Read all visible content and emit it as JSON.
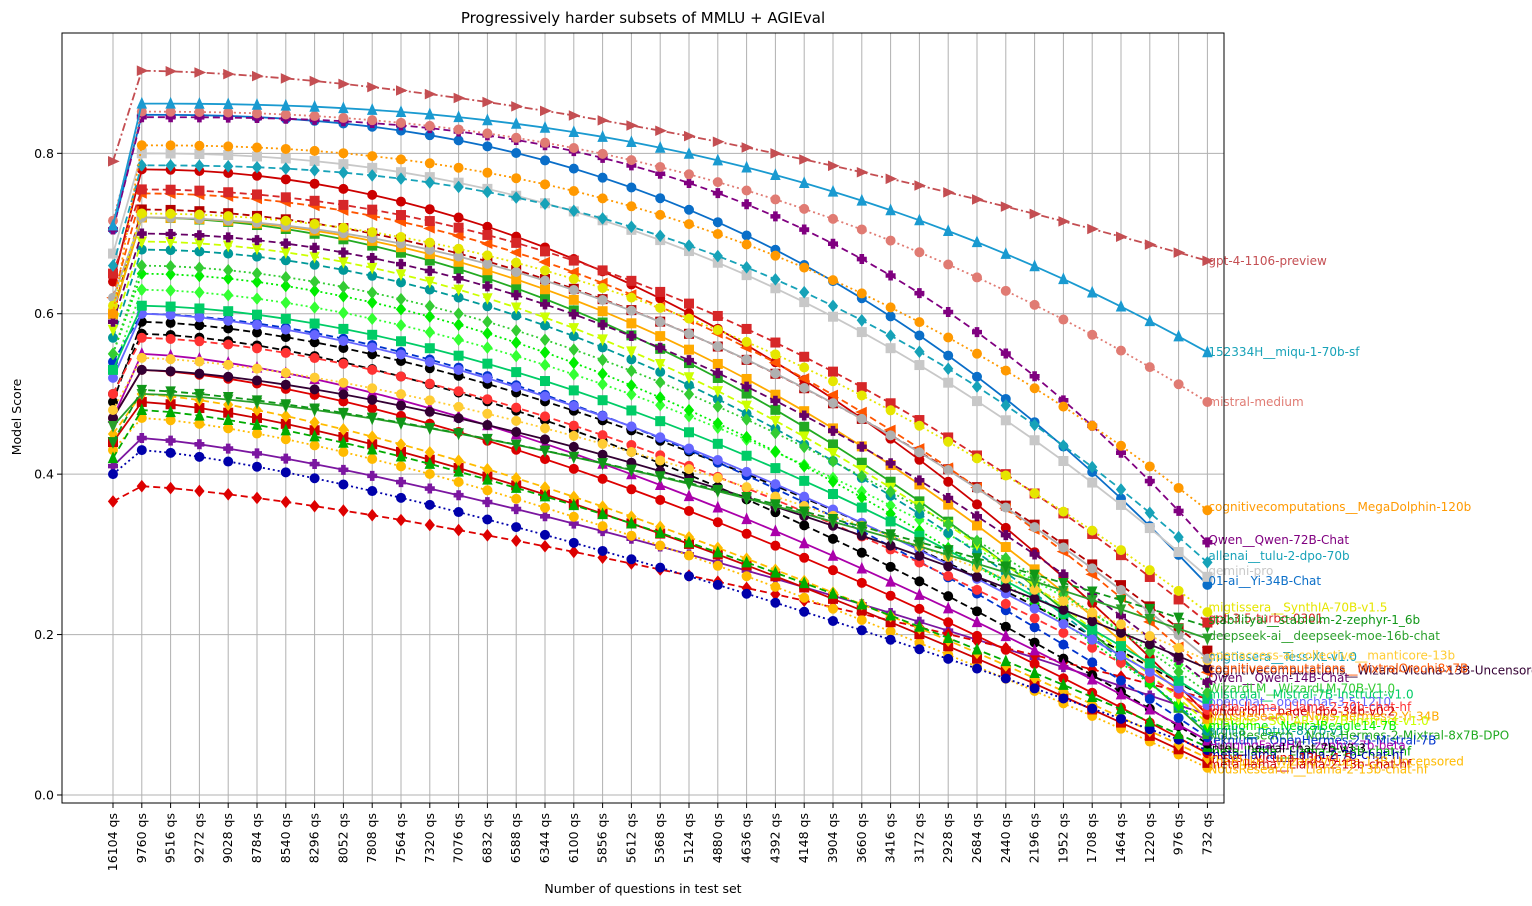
{
  "chart_data": {
    "type": "line",
    "title": "Progressively harder subsets of MMLU + AGIEval",
    "xlabel": "Number of questions in test set",
    "ylabel": "Model Score",
    "ylim": [
      -0.01,
      0.95
    ],
    "yticks": [
      "0.0",
      "0.2",
      "0.4",
      "0.6",
      "0.8"
    ],
    "grid": true,
    "legend": "none (series labelled at right end of lines)",
    "categories": [
      "16104 qs",
      "9760 qs",
      "9516 qs",
      "9272 qs",
      "9028 qs",
      "8784 qs",
      "8540 qs",
      "8296 qs",
      "8052 qs",
      "7808 qs",
      "7564 qs",
      "7320 qs",
      "7076 qs",
      "6832 qs",
      "6588 qs",
      "6344 qs",
      "6100 qs",
      "5856 qs",
      "5612 qs",
      "5368 qs",
      "5124 qs",
      "4880 qs",
      "4636 qs",
      "4392 qs",
      "4148 qs",
      "3904 qs",
      "3660 qs",
      "3416 qs",
      "3172 qs",
      "2928 qs",
      "2684 qs",
      "2440 qs",
      "2196 qs",
      "1952 qs",
      "1708 qs",
      "1464 qs",
      "1220 qs",
      "976 qs",
      "732 qs"
    ],
    "series": [
      {
        "name": "gpt-4-1106-preview",
        "start": 0.79,
        "peak": 0.903,
        "end": 0.666,
        "curve": 1.6,
        "color": "#c44e52",
        "dash": "8,3,2,3",
        "marker": "tri-right"
      },
      {
        "name": "152334H__miqu-1-70b-sf",
        "start": 0.71,
        "peak": 0.862,
        "end": 0.552,
        "curve": 2.4,
        "color": "#1a9ad0",
        "dash": "",
        "marker": "tri-up"
      },
      {
        "name": "mistral-medium",
        "start": 0.716,
        "peak": 0.852,
        "end": 0.49,
        "curve": 2.3,
        "color": "#e07b73",
        "dash": "2,3",
        "marker": "circle"
      },
      {
        "name": "cognitivecomputations__MegaDolphin-120b",
        "start": 0.6,
        "peak": 0.81,
        "end": 0.355,
        "curve": 2.3,
        "color": "#ff9900",
        "dash": "2,3",
        "marker": "circle"
      },
      {
        "name": "Qwen__Qwen-72B-Chat",
        "start": 0.705,
        "peak": 0.845,
        "end": 0.315,
        "curve": 2.8,
        "color": "#800080",
        "dash": "7,4",
        "marker": "plus"
      },
      {
        "name": "allenai__tulu-2-dpo-70b",
        "start": 0.66,
        "peak": 0.785,
        "end": 0.29,
        "curve": 2.4,
        "color": "#17a2b8",
        "dash": "7,4",
        "marker": "diamond"
      },
      {
        "name": "gemini-pro",
        "start": 0.675,
        "peak": 0.8,
        "end": 0.272,
        "curve": 2.2,
        "color": "#c8c8c8",
        "dash": "",
        "marker": "square"
      },
      {
        "name": "01-ai__Yi-34B-Chat",
        "start": 0.705,
        "peak": 0.848,
        "end": 0.262,
        "curve": 2.4,
        "color": "#0a6ec8",
        "dash": "",
        "marker": "circle"
      },
      {
        "name": "migtissera__SynthIA-70B-v1.5",
        "start": 0.61,
        "peak": 0.725,
        "end": 0.228,
        "curve": 2.0,
        "color": "#e6e600",
        "dash": "2,3",
        "marker": "circle"
      },
      {
        "name": "gpt-3.5-turbo-0301",
        "start": 0.65,
        "peak": 0.755,
        "end": 0.215,
        "curve": 2.0,
        "color": "#d62728",
        "dash": "7,4",
        "marker": "square"
      },
      {
        "name": "stabilityai__stablelm-2-zephyr-1_6b",
        "start": 0.44,
        "peak": 0.505,
        "end": 0.21,
        "curve": 1.4,
        "color": "#109618",
        "dash": "7,4",
        "marker": "tri-down"
      },
      {
        "name": "deepseek-ai__deepseek-moe-16b-chat",
        "start": 0.46,
        "peak": 0.5,
        "end": 0.195,
        "curve": 1.5,
        "color": "#2ca02c",
        "dash": "",
        "marker": "tri-down"
      },
      {
        "name": "migtissera__Tess-XL-v1.0",
        "start": 0.62,
        "peak": 0.72,
        "end": 0.17,
        "curve": 2.0,
        "color": "#b0b0b0",
        "dash": "",
        "marker": "circle"
      },
      {
        "name": "openaccess-ai-collective__manticore-13b",
        "start": 0.48,
        "peak": 0.545,
        "end": 0.168,
        "curve": 1.5,
        "color": "#ffcc33",
        "dash": "2,3",
        "marker": "circle"
      },
      {
        "name": "cognitivecomputations__Wizard-Vicuna-13B-Uncensored",
        "start": 0.47,
        "peak": 0.53,
        "end": 0.158,
        "curve": 1.5,
        "color": "#330033",
        "dash": "",
        "marker": "circle"
      },
      {
        "name": "cognitivecomputations__MixtralOrochi8x7B",
        "start": 0.62,
        "peak": 0.75,
        "end": 0.153,
        "curve": 2.0,
        "color": "#ff5500",
        "dash": "7,4",
        "marker": "tri-left"
      },
      {
        "name": "Qwen__Qwen-14B-Chat",
        "start": 0.59,
        "peak": 0.7,
        "end": 0.14,
        "curve": 1.9,
        "color": "#660066",
        "dash": "7,4",
        "marker": "plus"
      },
      {
        "name": "WizardLM__WizardLM-70B-V1.0",
        "start": 0.55,
        "peak": 0.66,
        "end": 0.128,
        "curve": 1.8,
        "color": "#33cc33",
        "dash": "2,3",
        "marker": "diamond"
      },
      {
        "name": "mistralai__Mistral-7B-Instruct-v1.0",
        "start": 0.53,
        "peak": 0.61,
        "end": 0.12,
        "curve": 1.7,
        "color": "#00cc66",
        "dash": "",
        "marker": "square"
      },
      {
        "name": "openchat__openchat-3.5-1210",
        "start": 0.52,
        "peak": 0.6,
        "end": 0.112,
        "curve": 1.6,
        "color": "#6666ff",
        "dash": "",
        "marker": "circle"
      },
      {
        "name": "meta-llama__Llama-2-70b-chat-hf",
        "start": 0.5,
        "peak": 0.57,
        "end": 0.106,
        "curve": 1.6,
        "color": "#ff3333",
        "dash": "7,4",
        "marker": "circle"
      },
      {
        "name": "jondurbin__bagel-dpo-34b-v0.2",
        "start": 0.64,
        "peak": 0.78,
        "end": 0.1,
        "curve": 2.0,
        "color": "#cc0000",
        "dash": "",
        "marker": "circle"
      },
      {
        "name": "NousResearch__Nous-Hermes-2-Yi-34B",
        "start": 0.6,
        "peak": 0.72,
        "end": 0.095,
        "curve": 2.0,
        "color": "#ffaa00",
        "dash": "",
        "marker": "square"
      },
      {
        "name": "upstage__SOLAR-10.7B-Instruct-v1.0",
        "start": 0.58,
        "peak": 0.69,
        "end": 0.09,
        "curve": 1.9,
        "color": "#ccff00",
        "dash": "7,4",
        "marker": "tri-down"
      },
      {
        "name": "mlabonne__NeuralBeagle14-7B",
        "start": 0.55,
        "peak": 0.65,
        "end": 0.085,
        "curve": 1.8,
        "color": "#00ee00",
        "dash": "2,3",
        "marker": "diamond"
      },
      {
        "name": "argilla__notux-8x7b-v1",
        "start": 0.57,
        "peak": 0.68,
        "end": 0.08,
        "curve": 1.9,
        "color": "#009999",
        "dash": "7,4",
        "marker": "circle"
      },
      {
        "name": "NousResearch__Nous-Hermes-2-Mixtral-8x7B-DPO",
        "start": 0.6,
        "peak": 0.72,
        "end": 0.076,
        "curve": 1.9,
        "color": "#22aa22",
        "dash": "",
        "marker": "square"
      },
      {
        "name": "teknium__OpenHermes-2.5-Mistral-7B",
        "start": 0.54,
        "peak": 0.6,
        "end": 0.072,
        "curve": 1.7,
        "color": "#0033cc",
        "dash": "7,4",
        "marker": "circle"
      },
      {
        "name": "HuggingFaceH4__zephyr-7b-beta",
        "start": 0.47,
        "peak": 0.55,
        "end": 0.068,
        "curve": 1.5,
        "color": "#aa00aa",
        "dash": "",
        "marker": "tri-up"
      },
      {
        "name": "Intel__neural-chat-7b-v3-3",
        "start": 0.5,
        "peak": 0.575,
        "end": 0.064,
        "curve": 1.6,
        "color": "#000000",
        "dash": "7,4",
        "marker": "circle"
      },
      {
        "name": "meta-llama__Llama-2-13b-chat-hf",
        "start": 0.42,
        "peak": 0.48,
        "end": 0.06,
        "curve": 1.4,
        "color": "#00aa00",
        "dash": "7,4",
        "marker": "tri-up"
      },
      {
        "name": "meta-llama__Llama-2-7b-chat-hf",
        "start": 0.4,
        "peak": 0.43,
        "end": 0.056,
        "curve": 1.3,
        "color": "#0000aa",
        "dash": "2,3",
        "marker": "circle"
      },
      {
        "name": "lmsys__vicuna-13b-v1.5",
        "start": 0.47,
        "peak": 0.53,
        "end": 0.052,
        "curve": 1.5,
        "color": "#dd0000",
        "dash": "",
        "marker": "circle"
      },
      {
        "name": "TheBloke__Wizard-Vicuna-13B-Uncensored",
        "start": 0.45,
        "peak": 0.5,
        "end": 0.046,
        "curve": 1.4,
        "color": "#ffbb00",
        "dash": "7,4",
        "marker": "diamond"
      },
      {
        "name": "meta-llama__Llama-2-13b-chat-hf",
        "start": 0.44,
        "peak": 0.49,
        "end": 0.04,
        "curve": 1.4,
        "color": "#cc0000",
        "dash": "",
        "marker": "square"
      },
      {
        "name": "NousResearch__Llama-2-13b-chat-hf",
        "start": 0.43,
        "peak": 0.47,
        "end": 0.034,
        "curve": 1.4,
        "color": "#ffbb00",
        "dash": "2,3",
        "marker": "circle"
      },
      {
        "name": "bottom-red-dashed",
        "start": 0.366,
        "peak": 0.385,
        "end": 0.12,
        "curve": 1.3,
        "color": "#dd0000",
        "dash": "7,4",
        "marker": "diamond",
        "unlabelled": true
      },
      {
        "name": "purple-solid",
        "start": 0.41,
        "peak": 0.445,
        "end": 0.1,
        "curve": 1.3,
        "color": "#7b16a0",
        "dash": "",
        "marker": "plus",
        "unlabelled": true
      },
      {
        "name": "black-dashed",
        "start": 0.49,
        "peak": 0.59,
        "end": 0.12,
        "curve": 1.6,
        "color": "#000000",
        "dash": "7,4",
        "marker": "circle",
        "unlabelled": true
      },
      {
        "name": "green-dotted",
        "start": 0.53,
        "peak": 0.63,
        "end": 0.14,
        "curve": 1.7,
        "color": "#33ff33",
        "dash": "2,3",
        "marker": "diamond",
        "unlabelled": true
      },
      {
        "name": "darkred-dashed",
        "start": 0.6,
        "peak": 0.73,
        "end": 0.18,
        "curve": 1.9,
        "color": "#b30000",
        "dash": "7,4",
        "marker": "square",
        "unlabelled": true
      }
    ],
    "end_labels": [
      {
        "text": "gpt-4-1106-preview",
        "color": "#c44e52",
        "y": 0.666
      },
      {
        "text": "152334H__miqu-1-70b-sf",
        "color": "#17a2b8",
        "y": 0.552
      },
      {
        "text": "mistral-medium",
        "color": "#e07b73",
        "y": 0.49
      },
      {
        "text": "cognitivecomputations__MegaDolphin-120b",
        "color": "#ff9900",
        "y": 0.359
      },
      {
        "text": "Qwen__Qwen-72B-Chat",
        "color": "#800080",
        "y": 0.318
      },
      {
        "text": "allenai__tulu-2-dpo-70b",
        "color": "#17a2b8",
        "y": 0.298
      },
      {
        "text": "gemini-pro",
        "color": "#c8c8c8",
        "y": 0.279
      },
      {
        "text": "01-ai__Yi-34B-Chat",
        "color": "#0a6ec8",
        "y": 0.267
      },
      {
        "text": "migtissera__SynthIA-70B-v1.5",
        "color": "#e6e600",
        "y": 0.234
      },
      {
        "text": "gpt-3.5-turbo-0301",
        "color": "#d62728",
        "y": 0.22
      },
      {
        "text": "stabilityai__stablelm-2-zephyr-1_6b",
        "color": "#109618",
        "y": 0.218
      },
      {
        "text": "deepseek-ai__deepseek-moe-16b-chat",
        "color": "#2ca02c",
        "y": 0.198
      },
      {
        "text": "migtissera__Tess-XL-v1.0",
        "color": "#17a2b8",
        "y": 0.172
      },
      {
        "text": "openaccess-ai-collective__manticore-13b",
        "color": "#ffcc33",
        "y": 0.174
      },
      {
        "text": "cognitivecomputations__Wizard-Vicuna-13B-Uncensored",
        "color": "#330033",
        "y": 0.155
      },
      {
        "text": "cognitivecomputations__MixtralOrochi8x7B",
        "color": "#ff5500",
        "y": 0.158
      },
      {
        "text": "Qwen__Qwen-14B-Chat",
        "color": "#660066",
        "y": 0.146
      },
      {
        "text": "WizardLM__WizardLM-70B-V1.0",
        "color": "#33cc33",
        "y": 0.133
      },
      {
        "text": "mistralai__Mistral-7B-Instruct-v1.0",
        "color": "#00cc66",
        "y": 0.125
      },
      {
        "text": "openchat__openchat-3.5-1210",
        "color": "#6666ff",
        "y": 0.116
      },
      {
        "text": "meta-llama__Llama-2-70b-chat-hf",
        "color": "#ff3333",
        "y": 0.11
      },
      {
        "text": "jondurbin__bagel-dpo-34b-v0.2",
        "color": "#cc0000",
        "y": 0.104
      },
      {
        "text": "NousResearch__Nous-Hermes-2-Yi-34B",
        "color": "#ffaa00",
        "y": 0.098
      },
      {
        "text": "upstage__SOLAR-10.7B-Instruct-v1.0",
        "color": "#ccff00",
        "y": 0.092
      },
      {
        "text": "mlabonne__NeuralBeagle14-7B",
        "color": "#00ee00",
        "y": 0.086
      },
      {
        "text": "argilla__notux-8x7b-v1",
        "color": "#009999",
        "y": 0.08
      },
      {
        "text": "NousResearch__Nous-Hermes-2-Mixtral-8x7B-DPO",
        "color": "#22aa22",
        "y": 0.074
      },
      {
        "text": "teknium__OpenHermes-2.5-Mistral-7B",
        "color": "#0033cc",
        "y": 0.068
      },
      {
        "text": "HuggingFaceH4__zephyr-7b-beta",
        "color": "#aa00aa",
        "y": 0.062
      },
      {
        "text": "Intel__neural-chat-7b-v3-3",
        "color": "#000000",
        "y": 0.058
      },
      {
        "text": "meta-llama__Llama-2-13b-chat-hf",
        "color": "#00aa00",
        "y": 0.054
      },
      {
        "text": "meta-llama__Llama-2-7b-chat-hf",
        "color": "#0000aa",
        "y": 0.05
      },
      {
        "text": "lmsys__vicuna-13b-v1.5",
        "color": "#dd0000",
        "y": 0.046
      },
      {
        "text": "TheBloke__Wizard-Vicuna-13B-Uncensored",
        "color": "#ffbb00",
        "y": 0.042
      },
      {
        "text": "meta-llama__Llama-2-13b-chat-hf",
        "color": "#cc0000",
        "y": 0.038
      },
      {
        "text": "NousResearch__Llama-2-13b-chat-hf",
        "color": "#ffbb00",
        "y": 0.032
      }
    ]
  }
}
